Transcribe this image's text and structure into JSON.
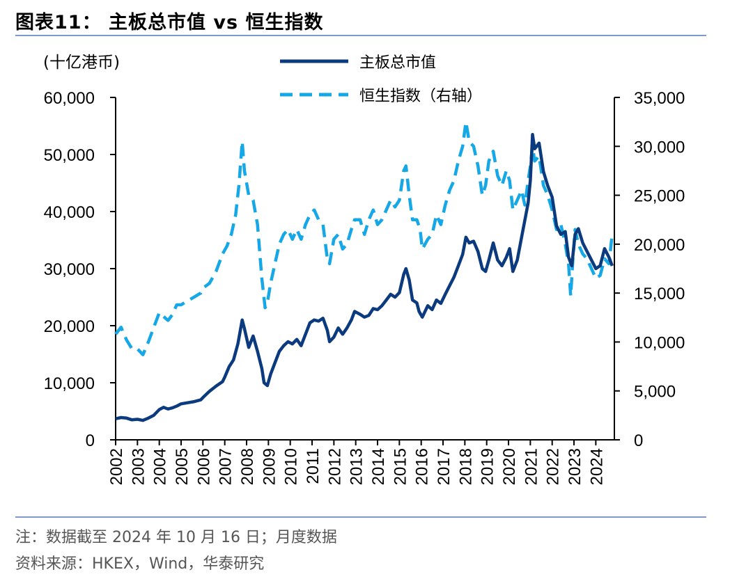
{
  "title": "图表11：  主板总市值 vs 恒生指数",
  "footnote": "注：数据截至 2024 年 10 月 16 日；月度数据",
  "source": "资料来源：HKEX，Wind，华泰研究",
  "colors": {
    "series_main": "#0b3a7e",
    "series_hsi": "#16a8e6",
    "rule": "#7f9ac8",
    "axis": "#000000"
  },
  "chart_data": {
    "type": "line",
    "ylabel_left": "(十亿港币)",
    "ylim_left": [
      0,
      60000
    ],
    "ylim_right": [
      0,
      35000
    ],
    "yticks_left": [
      "0",
      "10,000",
      "20,000",
      "30,000",
      "40,000",
      "50,000",
      "60,000"
    ],
    "yticks_right": [
      "0",
      "5,000",
      "10,000",
      "15,000",
      "20,000",
      "25,000",
      "30,000",
      "35,000"
    ],
    "xlim": [
      2002,
      2024.85
    ],
    "xticks": [
      "2002",
      "2003",
      "2004",
      "2005",
      "2006",
      "2007",
      "2008",
      "2009",
      "2010",
      "2011",
      "2012",
      "2013",
      "2014",
      "2015",
      "2016",
      "2017",
      "2018",
      "2019",
      "2020",
      "2021",
      "2022",
      "2023",
      "2024"
    ],
    "legend_position": "top-center",
    "series": [
      {
        "name": "主板总市值",
        "axis": "left",
        "style": "solid",
        "points": [
          [
            2002.0,
            3700
          ],
          [
            2002.25,
            3900
          ],
          [
            2002.5,
            3800
          ],
          [
            2002.75,
            3500
          ],
          [
            2003.0,
            3600
          ],
          [
            2003.25,
            3400
          ],
          [
            2003.5,
            3800
          ],
          [
            2003.75,
            4300
          ],
          [
            2004.0,
            5300
          ],
          [
            2004.2,
            5700
          ],
          [
            2004.4,
            5400
          ],
          [
            2004.6,
            5600
          ],
          [
            2004.8,
            5900
          ],
          [
            2005.0,
            6300
          ],
          [
            2005.3,
            6500
          ],
          [
            2005.6,
            6700
          ],
          [
            2005.9,
            7000
          ],
          [
            2006.0,
            7400
          ],
          [
            2006.3,
            8500
          ],
          [
            2006.6,
            9400
          ],
          [
            2006.9,
            10200
          ],
          [
            2007.0,
            11000
          ],
          [
            2007.2,
            12800
          ],
          [
            2007.4,
            14000
          ],
          [
            2007.6,
            16800
          ],
          [
            2007.8,
            21000
          ],
          [
            2007.9,
            19500
          ],
          [
            2008.1,
            16200
          ],
          [
            2008.3,
            18200
          ],
          [
            2008.5,
            15500
          ],
          [
            2008.7,
            12500
          ],
          [
            2008.8,
            10000
          ],
          [
            2008.95,
            9500
          ],
          [
            2009.1,
            11500
          ],
          [
            2009.3,
            13500
          ],
          [
            2009.5,
            15500
          ],
          [
            2009.7,
            16500
          ],
          [
            2009.9,
            17200
          ],
          [
            2010.1,
            16800
          ],
          [
            2010.3,
            17600
          ],
          [
            2010.5,
            16500
          ],
          [
            2010.7,
            18500
          ],
          [
            2010.9,
            20500
          ],
          [
            2011.1,
            21000
          ],
          [
            2011.3,
            20800
          ],
          [
            2011.5,
            21300
          ],
          [
            2011.7,
            19200
          ],
          [
            2011.8,
            17200
          ],
          [
            2012.0,
            18000
          ],
          [
            2012.2,
            19600
          ],
          [
            2012.4,
            18500
          ],
          [
            2012.6,
            19600
          ],
          [
            2012.8,
            21000
          ],
          [
            2012.95,
            22500
          ],
          [
            2013.2,
            22000
          ],
          [
            2013.4,
            21500
          ],
          [
            2013.6,
            21800
          ],
          [
            2013.8,
            23000
          ],
          [
            2014.0,
            22800
          ],
          [
            2014.2,
            23500
          ],
          [
            2014.4,
            24500
          ],
          [
            2014.6,
            25500
          ],
          [
            2014.8,
            25000
          ],
          [
            2015.0,
            25800
          ],
          [
            2015.2,
            29000
          ],
          [
            2015.3,
            30000
          ],
          [
            2015.45,
            28000
          ],
          [
            2015.6,
            24500
          ],
          [
            2015.8,
            24000
          ],
          [
            2015.9,
            22500
          ],
          [
            2016.05,
            21500
          ],
          [
            2016.3,
            23500
          ],
          [
            2016.5,
            22800
          ],
          [
            2016.7,
            24500
          ],
          [
            2016.9,
            23900
          ],
          [
            2017.1,
            25500
          ],
          [
            2017.3,
            27000
          ],
          [
            2017.5,
            28500
          ],
          [
            2017.7,
            30500
          ],
          [
            2017.9,
            32500
          ],
          [
            2018.05,
            35500
          ],
          [
            2018.2,
            34500
          ],
          [
            2018.4,
            34800
          ],
          [
            2018.6,
            33000
          ],
          [
            2018.8,
            30000
          ],
          [
            2018.95,
            29500
          ],
          [
            2019.1,
            31500
          ],
          [
            2019.3,
            34500
          ],
          [
            2019.5,
            31500
          ],
          [
            2019.7,
            30500
          ],
          [
            2019.9,
            32000
          ],
          [
            2020.05,
            33500
          ],
          [
            2020.2,
            29500
          ],
          [
            2020.4,
            31500
          ],
          [
            2020.6,
            35500
          ],
          [
            2020.75,
            38500
          ],
          [
            2020.9,
            41500
          ],
          [
            2021.0,
            45500
          ],
          [
            2021.1,
            53500
          ],
          [
            2021.2,
            51000
          ],
          [
            2021.4,
            52000
          ],
          [
            2021.6,
            47000
          ],
          [
            2021.8,
            44500
          ],
          [
            2022.0,
            42500
          ],
          [
            2022.2,
            37500
          ],
          [
            2022.4,
            36000
          ],
          [
            2022.6,
            36500
          ],
          [
            2022.75,
            32000
          ],
          [
            2022.9,
            30500
          ],
          [
            2023.05,
            36000
          ],
          [
            2023.2,
            37000
          ],
          [
            2023.4,
            34500
          ],
          [
            2023.6,
            33000
          ],
          [
            2023.8,
            31500
          ],
          [
            2024.0,
            30000
          ],
          [
            2024.2,
            30500
          ],
          [
            2024.4,
            33500
          ],
          [
            2024.6,
            32000
          ],
          [
            2024.75,
            30500
          ]
        ]
      },
      {
        "name": "恒生指数（右轴）",
        "axis": "right",
        "style": "dashed",
        "points": [
          [
            2002.0,
            10800
          ],
          [
            2002.25,
            11500
          ],
          [
            2002.5,
            10200
          ],
          [
            2002.75,
            9300
          ],
          [
            2003.0,
            9300
          ],
          [
            2003.25,
            8700
          ],
          [
            2003.5,
            10000
          ],
          [
            2003.75,
            11500
          ],
          [
            2004.0,
            13000
          ],
          [
            2004.2,
            12600
          ],
          [
            2004.4,
            12200
          ],
          [
            2004.6,
            12800
          ],
          [
            2004.8,
            13800
          ],
          [
            2005.0,
            13800
          ],
          [
            2005.3,
            14200
          ],
          [
            2005.6,
            14600
          ],
          [
            2005.9,
            15000
          ],
          [
            2006.0,
            15500
          ],
          [
            2006.3,
            16000
          ],
          [
            2006.6,
            17200
          ],
          [
            2006.9,
            19000
          ],
          [
            2007.1,
            19800
          ],
          [
            2007.3,
            21000
          ],
          [
            2007.5,
            23000
          ],
          [
            2007.65,
            26000
          ],
          [
            2007.8,
            30500
          ],
          [
            2007.9,
            27500
          ],
          [
            2008.1,
            25000
          ],
          [
            2008.3,
            24500
          ],
          [
            2008.5,
            22000
          ],
          [
            2008.7,
            16500
          ],
          [
            2008.85,
            13500
          ],
          [
            2008.95,
            14000
          ],
          [
            2009.1,
            16000
          ],
          [
            2009.3,
            18000
          ],
          [
            2009.5,
            20000
          ],
          [
            2009.7,
            21000
          ],
          [
            2009.9,
            21500
          ],
          [
            2010.1,
            20500
          ],
          [
            2010.3,
            21500
          ],
          [
            2010.5,
            20500
          ],
          [
            2010.7,
            22000
          ],
          [
            2010.9,
            23000
          ],
          [
            2011.1,
            23500
          ],
          [
            2011.3,
            22500
          ],
          [
            2011.5,
            22000
          ],
          [
            2011.7,
            18500
          ],
          [
            2011.8,
            18000
          ],
          [
            2012.0,
            20500
          ],
          [
            2012.2,
            21000
          ],
          [
            2012.4,
            19500
          ],
          [
            2012.6,
            20000
          ],
          [
            2012.8,
            21500
          ],
          [
            2012.95,
            22500
          ],
          [
            2013.2,
            22500
          ],
          [
            2013.4,
            21000
          ],
          [
            2013.6,
            22500
          ],
          [
            2013.8,
            23500
          ],
          [
            2014.0,
            22000
          ],
          [
            2014.2,
            22500
          ],
          [
            2014.4,
            23500
          ],
          [
            2014.6,
            24500
          ],
          [
            2014.8,
            23800
          ],
          [
            2015.0,
            24500
          ],
          [
            2015.2,
            27500
          ],
          [
            2015.3,
            28000
          ],
          [
            2015.45,
            25000
          ],
          [
            2015.6,
            22500
          ],
          [
            2015.8,
            22500
          ],
          [
            2015.95,
            21500
          ],
          [
            2016.05,
            19500
          ],
          [
            2016.3,
            20500
          ],
          [
            2016.5,
            21000
          ],
          [
            2016.7,
            23000
          ],
          [
            2016.9,
            22000
          ],
          [
            2017.1,
            24000
          ],
          [
            2017.3,
            25500
          ],
          [
            2017.5,
            26500
          ],
          [
            2017.7,
            28500
          ],
          [
            2017.9,
            30000
          ],
          [
            2018.05,
            32500
          ],
          [
            2018.2,
            30500
          ],
          [
            2018.4,
            30000
          ],
          [
            2018.6,
            28000
          ],
          [
            2018.8,
            25000
          ],
          [
            2018.95,
            26000
          ],
          [
            2019.1,
            28500
          ],
          [
            2019.3,
            29500
          ],
          [
            2019.5,
            27000
          ],
          [
            2019.7,
            26000
          ],
          [
            2019.9,
            27500
          ],
          [
            2020.05,
            26500
          ],
          [
            2020.2,
            23500
          ],
          [
            2020.4,
            24500
          ],
          [
            2020.6,
            25500
          ],
          [
            2020.75,
            24000
          ],
          [
            2020.9,
            26500
          ],
          [
            2021.0,
            28000
          ],
          [
            2021.1,
            30000
          ],
          [
            2021.2,
            28500
          ],
          [
            2021.4,
            29000
          ],
          [
            2021.6,
            26000
          ],
          [
            2021.8,
            25000
          ],
          [
            2022.0,
            23500
          ],
          [
            2022.2,
            21500
          ],
          [
            2022.4,
            22000
          ],
          [
            2022.6,
            20000
          ],
          [
            2022.75,
            18000
          ],
          [
            2022.85,
            14700
          ],
          [
            2022.95,
            18500
          ],
          [
            2023.05,
            21500
          ],
          [
            2023.2,
            20000
          ],
          [
            2023.4,
            19000
          ],
          [
            2023.6,
            18500
          ],
          [
            2023.8,
            17500
          ],
          [
            2024.0,
            16500
          ],
          [
            2024.2,
            16800
          ],
          [
            2024.4,
            18500
          ],
          [
            2024.6,
            18000
          ],
          [
            2024.75,
            21000
          ]
        ]
      }
    ]
  }
}
